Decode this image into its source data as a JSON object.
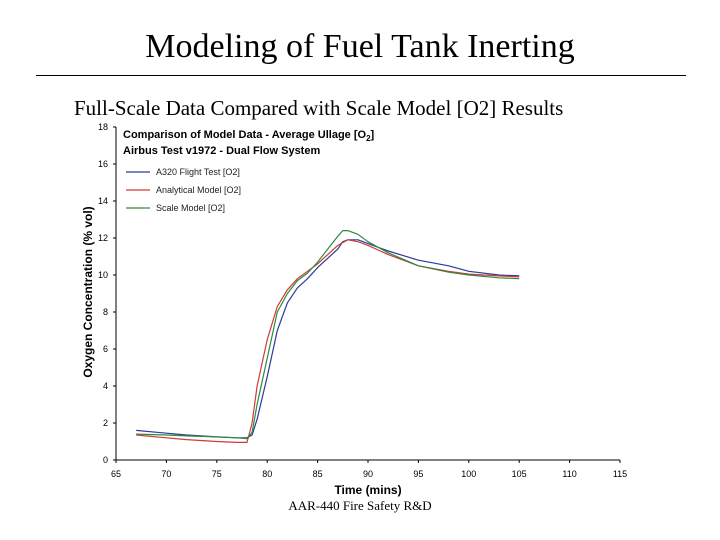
{
  "slide": {
    "title": "Modeling of Fuel Tank Inerting",
    "subtitle": "Full-Scale Data Compared with Scale Model [O2] Results",
    "footer": "AAR-440 Fire Safety R&D"
  },
  "chart_data": {
    "type": "line",
    "title": "Comparison of Model Data - Average Ullage [O",
    "title_subscript": "2",
    "title_suffix": "]",
    "subtitle": "Airbus Test v1972 - Dual Flow System",
    "xlabel": "Time (mins)",
    "ylabel": "Oxygen Concentration (% vol)",
    "xlim": [
      65,
      115
    ],
    "ylim": [
      0,
      18
    ],
    "xticks": [
      65,
      70,
      75,
      80,
      85,
      90,
      95,
      100,
      105,
      110,
      115
    ],
    "yticks": [
      0,
      2,
      4,
      6,
      8,
      10,
      12,
      14,
      16,
      18
    ],
    "grid": false,
    "legend_position": "top-left",
    "series": [
      {
        "name": "A320 Flight Test [O2]",
        "color": "#2b3a9b",
        "x": [
          67,
          70,
          72,
          75,
          77,
          78,
          78.5,
          79,
          80,
          81,
          82,
          83,
          84,
          85,
          86,
          87,
          87.5,
          88,
          89,
          90,
          92,
          95,
          98,
          100,
          103,
          105
        ],
        "y": [
          1.6,
          1.45,
          1.35,
          1.25,
          1.2,
          1.2,
          1.35,
          2.2,
          4.5,
          7.0,
          8.5,
          9.3,
          9.8,
          10.4,
          10.9,
          11.4,
          11.8,
          11.9,
          11.9,
          11.7,
          11.3,
          10.8,
          10.5,
          10.2,
          10.0,
          9.95
        ]
      },
      {
        "name": "Analytical Model [O2]",
        "color": "#d03a3a",
        "x": [
          67,
          70,
          72,
          75,
          77,
          78,
          78.5,
          79,
          80,
          81,
          82,
          83,
          84,
          85,
          86,
          87,
          88,
          89,
          90,
          92,
          95,
          98,
          100,
          103,
          105
        ],
        "y": [
          1.35,
          1.2,
          1.1,
          1.0,
          0.95,
          0.95,
          2.0,
          4.0,
          6.5,
          8.3,
          9.2,
          9.8,
          10.2,
          10.6,
          11.1,
          11.6,
          11.9,
          11.8,
          11.6,
          11.1,
          10.5,
          10.2,
          10.05,
          9.95,
          9.9
        ]
      },
      {
        "name": "Scale Model [O2]",
        "color": "#2e8b3a",
        "x": [
          67,
          70,
          72,
          75,
          77,
          78,
          78.5,
          79,
          80,
          81,
          82,
          83,
          84,
          85,
          86,
          87,
          87.5,
          88,
          89,
          90,
          92,
          95,
          98,
          100,
          103,
          105
        ],
        "y": [
          1.4,
          1.35,
          1.3,
          1.25,
          1.2,
          1.15,
          1.5,
          3.0,
          5.5,
          8.0,
          9.0,
          9.7,
          10.1,
          10.7,
          11.4,
          12.1,
          12.4,
          12.4,
          12.2,
          11.8,
          11.2,
          10.5,
          10.15,
          10.0,
          9.85,
          9.8
        ]
      }
    ]
  }
}
